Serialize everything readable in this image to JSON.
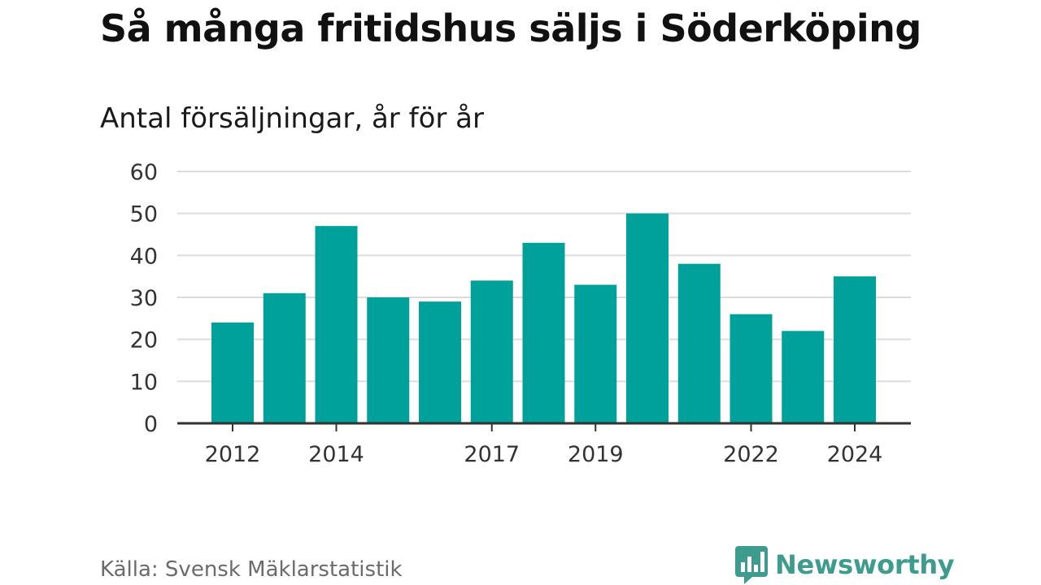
{
  "header": {
    "title": "Så många fritidshus säljs i Söderköping",
    "subtitle": "Antal försäljningar, år för år"
  },
  "footer": {
    "source": "Källa: Svensk Mäklarstatistik",
    "brand": "Newsworthy",
    "brand_icon": "bar-chart-speech-bubble-icon"
  },
  "colors": {
    "bar": "#00a19b",
    "grid": "#dcdcdc",
    "axis": "#333333",
    "brand": "#3e9c8f"
  },
  "chart_data": {
    "type": "bar",
    "title": "Så många fritidshus säljs i Söderköping",
    "subtitle": "Antal försäljningar, år för år",
    "categories": [
      "2012",
      "2013",
      "2014",
      "2015",
      "2016",
      "2017",
      "2018",
      "2019",
      "2020",
      "2021",
      "2022",
      "2023",
      "2024"
    ],
    "values": [
      24,
      31,
      47,
      30,
      29,
      34,
      43,
      33,
      50,
      38,
      26,
      22,
      35
    ],
    "x_tick_labels": [
      "2012",
      "2014",
      "2017",
      "2019",
      "2022",
      "2024"
    ],
    "y_ticks": [
      0,
      10,
      20,
      30,
      40,
      50,
      60
    ],
    "ylim": [
      0,
      60
    ],
    "xlabel": "",
    "ylabel": "",
    "grid": true,
    "legend": "none"
  }
}
